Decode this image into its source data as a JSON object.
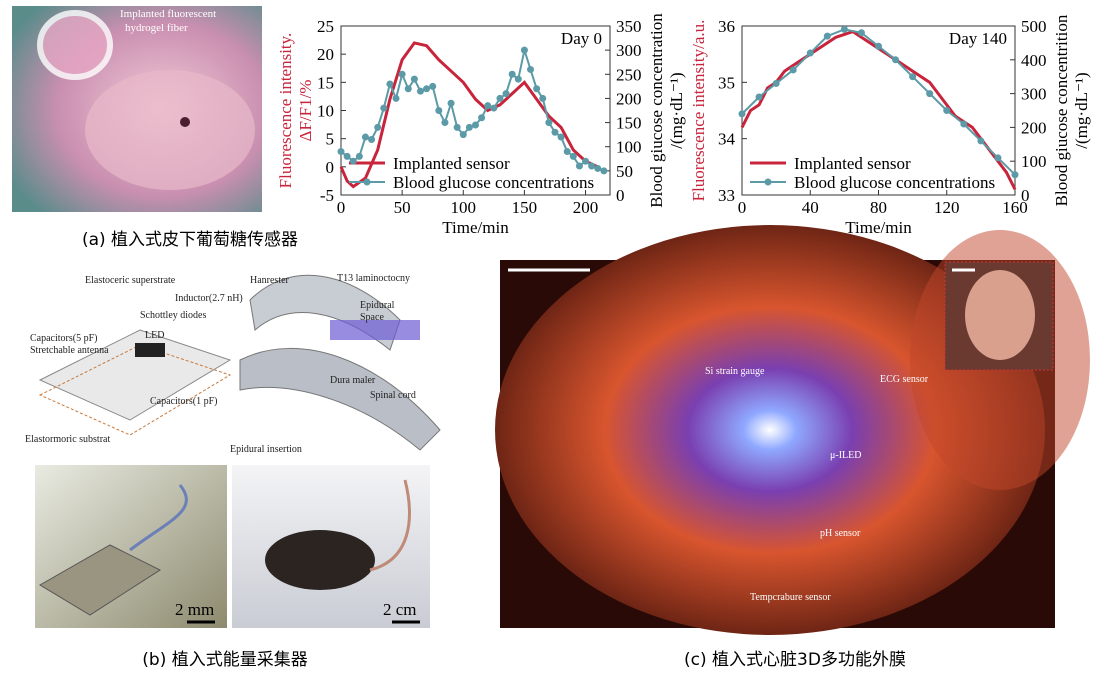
{
  "chart_data": [
    {
      "type": "line",
      "title": "Day 0",
      "xlabel": "Time/min",
      "ylabel": [
        "Fluorescence intensity.",
        "ΔF/F1/%"
      ],
      "y2label": [
        "Blood giucose concentration",
        "/(mg·dL⁻¹)"
      ],
      "xlim": [
        0,
        220
      ],
      "xticks": [
        0,
        50,
        100,
        150,
        200
      ],
      "ylim": [
        -5,
        25
      ],
      "yticks": [
        -5,
        0,
        5,
        10,
        15,
        20,
        25
      ],
      "y2lim": [
        0,
        350
      ],
      "y2ticks": [
        0,
        50,
        100,
        150,
        200,
        250,
        300,
        350
      ],
      "legend": "lower left",
      "series": [
        {
          "name": "Implanted sensor",
          "color": "#c8243c",
          "axis": "y",
          "x": [
            0,
            5,
            10,
            20,
            30,
            40,
            50,
            60,
            70,
            80,
            90,
            100,
            110,
            120,
            130,
            140,
            150,
            160,
            170,
            180,
            190,
            200,
            210
          ],
          "values": [
            0,
            -2.5,
            -3.5,
            -2,
            3,
            12,
            19,
            22,
            21.5,
            19,
            17,
            15,
            12,
            10,
            11,
            13,
            15,
            12,
            9,
            7,
            3,
            1,
            0
          ]
        },
        {
          "name": "Blood glucose concentrations",
          "color": "#5b9aa6",
          "axis": "y2",
          "marker": true,
          "x": [
            0,
            5,
            10,
            15,
            20,
            25,
            30,
            35,
            40,
            45,
            50,
            55,
            60,
            65,
            70,
            75,
            80,
            85,
            90,
            95,
            100,
            105,
            110,
            115,
            120,
            125,
            130,
            135,
            140,
            145,
            150,
            155,
            160,
            165,
            170,
            175,
            180,
            185,
            190,
            195,
            200,
            205,
            210,
            215
          ],
          "values": [
            90,
            80,
            70,
            80,
            120,
            115,
            140,
            180,
            230,
            200,
            250,
            220,
            240,
            215,
            220,
            225,
            175,
            150,
            190,
            140,
            125,
            140,
            145,
            160,
            185,
            180,
            200,
            210,
            250,
            240,
            300,
            260,
            220,
            200,
            150,
            130,
            120,
            90,
            80,
            60,
            70,
            60,
            55,
            50
          ]
        }
      ]
    },
    {
      "type": "line",
      "title": "Day 140",
      "xlabel": "Time/min",
      "ylabel": [
        "Fluorescence intensity/a.u."
      ],
      "y2label": [
        "Blood giucose concentrition",
        "/(mg·dL⁻¹)"
      ],
      "xlim": [
        0,
        160
      ],
      "xticks": [
        0,
        40,
        80,
        120,
        160
      ],
      "ylim": [
        33,
        36
      ],
      "yticks": [
        33,
        34,
        35,
        36
      ],
      "y2lim": [
        0,
        500
      ],
      "y2ticks": [
        0,
        100,
        200,
        300,
        400,
        500
      ],
      "legend": "lower left",
      "series": [
        {
          "name": "Implanted sensor",
          "color": "#c8243c",
          "axis": "y",
          "x": [
            0,
            5,
            10,
            15,
            20,
            25,
            30,
            35,
            40,
            45,
            50,
            55,
            60,
            65,
            70,
            75,
            80,
            85,
            90,
            95,
            100,
            105,
            110,
            115,
            120,
            125,
            130,
            135,
            140,
            145,
            150,
            155,
            160
          ],
          "values": [
            34.2,
            34.5,
            34.6,
            34.9,
            35.0,
            35.2,
            35.3,
            35.4,
            35.5,
            35.6,
            35.7,
            35.8,
            35.85,
            35.9,
            35.8,
            35.7,
            35.6,
            35.5,
            35.4,
            35.3,
            35.2,
            35.1,
            35.0,
            34.8,
            34.6,
            34.4,
            34.3,
            34.2,
            34.0,
            33.8,
            33.6,
            33.4,
            33.1
          ]
        },
        {
          "name": "Blood glucose concentrations",
          "color": "#5b9aa6",
          "axis": "y2",
          "marker": true,
          "x": [
            0,
            10,
            20,
            30,
            40,
            50,
            60,
            70,
            80,
            90,
            100,
            110,
            120,
            130,
            140,
            150,
            160
          ],
          "values": [
            240,
            290,
            330,
            370,
            420,
            470,
            490,
            480,
            440,
            400,
            350,
            300,
            250,
            210,
            160,
            110,
            60
          ]
        }
      ]
    }
  ],
  "panel_a": {
    "label": [
      "Implanted fluorescent",
      "hydrogel fiber"
    ],
    "caption": "(a) 植入式皮下葡萄糖传感器"
  },
  "panel_b": {
    "labels": [
      "Elastoceric superstrate",
      "Inductor(2.7 nH)",
      "Schottley diodes",
      "LED",
      "Capacitors(5 pF)",
      "Stretchable antenna",
      "Capacitors(1 pF)",
      "Elastormoric substrat",
      "Hanrester",
      "T13 laminoctocny",
      "Epidural",
      "Space",
      "Dura maler",
      "Spinal cord",
      "Epidural insertion",
      "2 mm",
      "2 cm"
    ],
    "caption": "(b) 植入式能量采集器"
  },
  "panel_c": {
    "labels": [
      "Si strain gauge",
      "ECG sensor",
      "μ-ILED",
      "pH sensor",
      "Tempcrabure sensor"
    ],
    "caption": "(c) 植入式心脏3D多功能外膜"
  }
}
